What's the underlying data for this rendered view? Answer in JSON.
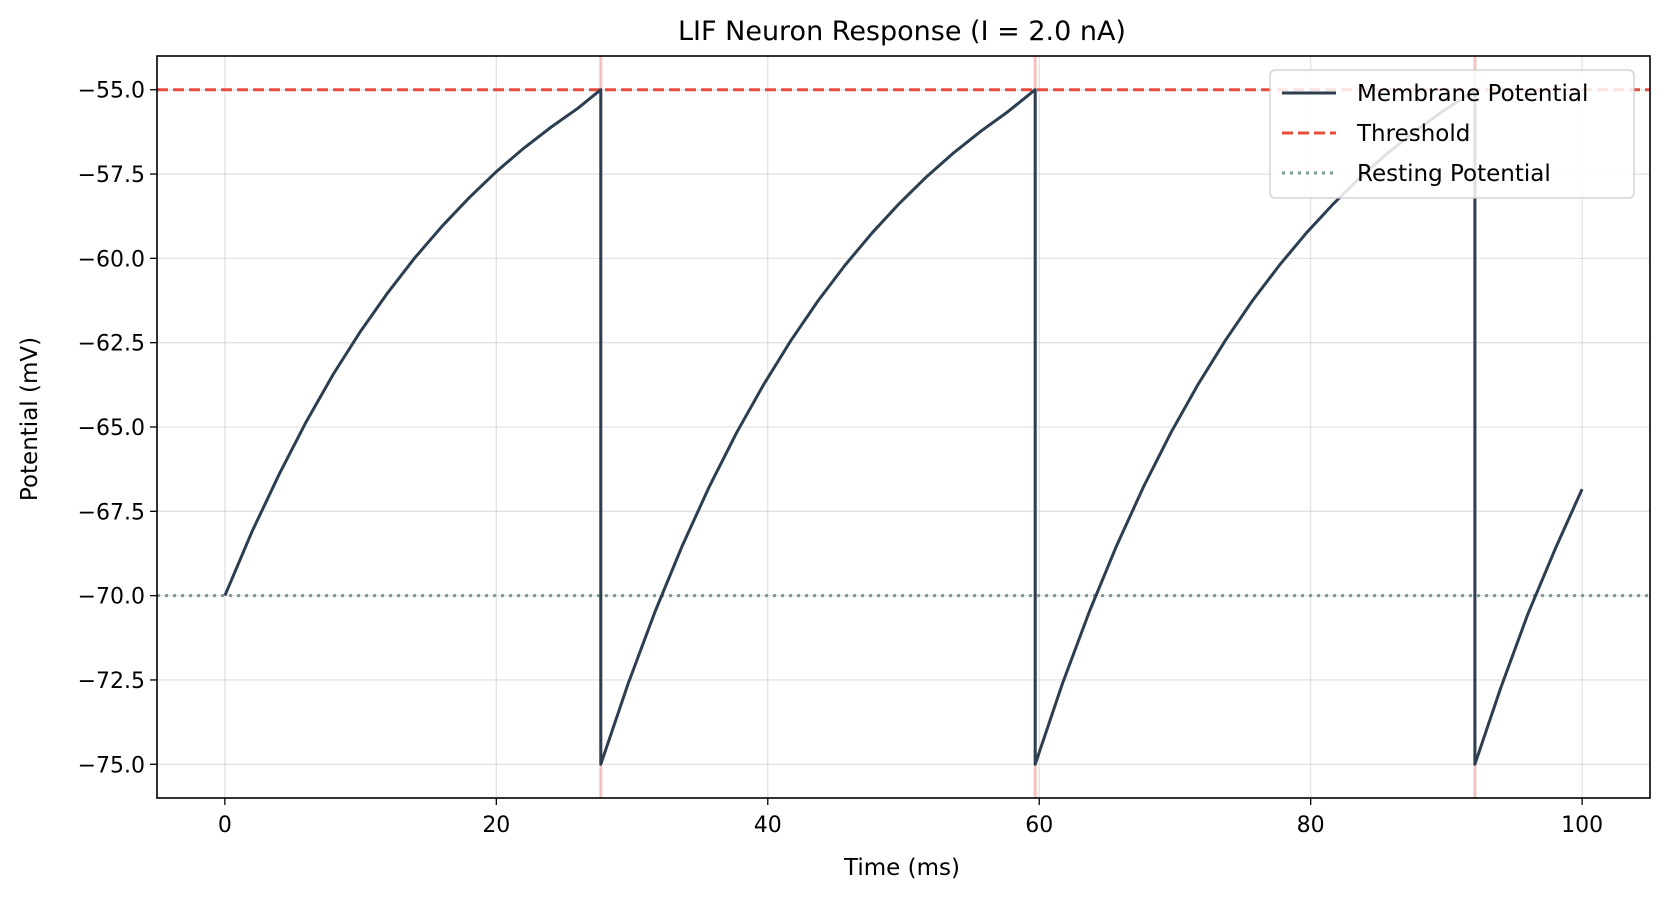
{
  "chart_data": {
    "type": "line",
    "title": "LIF Neuron Response (I = 2.0 nA)",
    "xlabel": "Time (ms)",
    "ylabel": "Potential (mV)",
    "xlim": [
      -5,
      105
    ],
    "ylim": [
      -76,
      -54
    ],
    "xticks": [
      0,
      20,
      40,
      60,
      80,
      100
    ],
    "xtick_labels": [
      "0",
      "20",
      "40",
      "60",
      "80",
      "100"
    ],
    "yticks": [
      -55.0,
      -57.5,
      -60.0,
      -62.5,
      -65.0,
      -67.5,
      -70.0,
      -72.5,
      -75.0
    ],
    "ytick_labels": [
      "−55.0",
      "−57.5",
      "−60.0",
      "−62.5",
      "−65.0",
      "−67.5",
      "−70.0",
      "−72.5",
      "−75.0"
    ],
    "grid": true,
    "legend_position": "top-right",
    "series": [
      {
        "name": "Membrane Potential",
        "style": "solid",
        "color": "#2c3e50",
        "x": [
          0,
          2,
          4,
          6,
          8,
          10,
          12,
          14,
          16,
          18,
          20,
          22,
          24,
          26,
          27.7,
          27.7,
          29.7,
          31.7,
          33.7,
          35.7,
          37.7,
          39.7,
          41.7,
          43.7,
          45.7,
          47.7,
          49.7,
          51.7,
          53.7,
          55.7,
          57.7,
          59.7,
          59.7,
          61.7,
          63.7,
          65.7,
          67.7,
          69.7,
          71.7,
          73.7,
          75.7,
          77.7,
          79.7,
          81.7,
          83.7,
          85.7,
          87.7,
          89.7,
          91.7,
          92.1,
          92.1,
          94,
          96,
          98,
          100
        ],
        "values": [
          -70.0,
          -68.1,
          -66.4,
          -64.84,
          -63.43,
          -62.16,
          -61.02,
          -59.98,
          -59.05,
          -58.2,
          -57.43,
          -56.74,
          -56.12,
          -55.55,
          -55.0,
          -75.0,
          -72.62,
          -70.47,
          -68.52,
          -66.76,
          -65.17,
          -63.74,
          -62.44,
          -61.26,
          -60.2,
          -59.24,
          -58.37,
          -57.58,
          -56.87,
          -56.23,
          -55.65,
          -55.0,
          -75.0,
          -72.62,
          -70.47,
          -68.52,
          -66.76,
          -65.17,
          -63.74,
          -62.44,
          -61.26,
          -60.2,
          -59.24,
          -58.37,
          -57.58,
          -56.87,
          -56.23,
          -55.65,
          -55.12,
          -55.0,
          -75.0,
          -72.74,
          -70.55,
          -68.63,
          -66.84
        ]
      },
      {
        "name": "Threshold",
        "style": "dashed",
        "color": "#e74c3c",
        "y": -55.0
      },
      {
        "name": "Resting Potential",
        "style": "dotted",
        "color": "#7f9c94",
        "y": -70.0
      }
    ],
    "spike_markers": {
      "color": "#f5b7b1",
      "x": [
        27.7,
        59.7,
        92.1
      ]
    }
  }
}
